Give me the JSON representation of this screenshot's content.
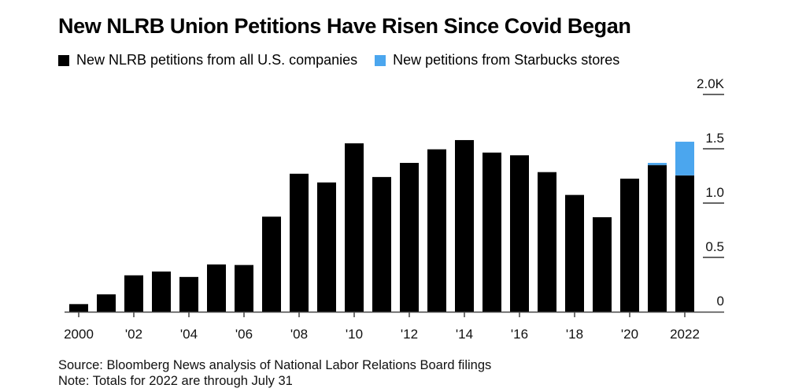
{
  "chart_data": {
    "type": "bar",
    "stacked": true,
    "title": "New NLRB Union Petitions Have Risen Since Covid Began",
    "xlabel": "",
    "ylabel": "",
    "categories": [
      "2000",
      "2001",
      "2002",
      "2003",
      "2004",
      "2005",
      "2006",
      "2007",
      "2008",
      "2009",
      "2010",
      "2011",
      "2012",
      "2013",
      "2014",
      "2015",
      "2016",
      "2017",
      "2018",
      "2019",
      "2020",
      "2021",
      "2022"
    ],
    "series": [
      {
        "name": "New NLRB petitions from all U.S. companies",
        "color": "#000000",
        "values": [
          70,
          160,
          335,
          370,
          320,
          435,
          430,
          875,
          1270,
          1190,
          1550,
          1240,
          1370,
          1495,
          1580,
          1465,
          1440,
          1285,
          1075,
          870,
          1225,
          1350,
          1255
        ]
      },
      {
        "name": "New petitions from Starbucks stores",
        "color": "#4BA6EE",
        "values": [
          0,
          0,
          0,
          0,
          0,
          0,
          0,
          0,
          0,
          0,
          0,
          0,
          0,
          0,
          0,
          0,
          0,
          0,
          0,
          0,
          0,
          20,
          310
        ]
      }
    ],
    "ylim": [
      0,
      2000
    ],
    "yticks": [
      {
        "value": 0,
        "label": "0"
      },
      {
        "value": 500,
        "label": "0.5"
      },
      {
        "value": 1000,
        "label": "1.0"
      },
      {
        "value": 1500,
        "label": "1.5"
      },
      {
        "value": 2000,
        "label": "2.0K"
      }
    ],
    "xticks": [
      {
        "category": "2000",
        "label": "2000"
      },
      {
        "category": "2002",
        "label": "'02"
      },
      {
        "category": "2004",
        "label": "'04"
      },
      {
        "category": "2006",
        "label": "'06"
      },
      {
        "category": "2008",
        "label": "'08"
      },
      {
        "category": "2010",
        "label": "'10"
      },
      {
        "category": "2012",
        "label": "'12"
      },
      {
        "category": "2014",
        "label": "'14"
      },
      {
        "category": "2016",
        "label": "'16"
      },
      {
        "category": "2018",
        "label": "'18"
      },
      {
        "category": "2020",
        "label": "'20"
      },
      {
        "category": "2022",
        "label": "2022"
      }
    ],
    "grid": false,
    "yaxis_position": "right",
    "legend_position": "top-left"
  },
  "footer": {
    "source": "Source: Bloomberg News analysis of National Labor Relations Board filings",
    "note": "Note: Totals for 2022 are through July 31"
  }
}
